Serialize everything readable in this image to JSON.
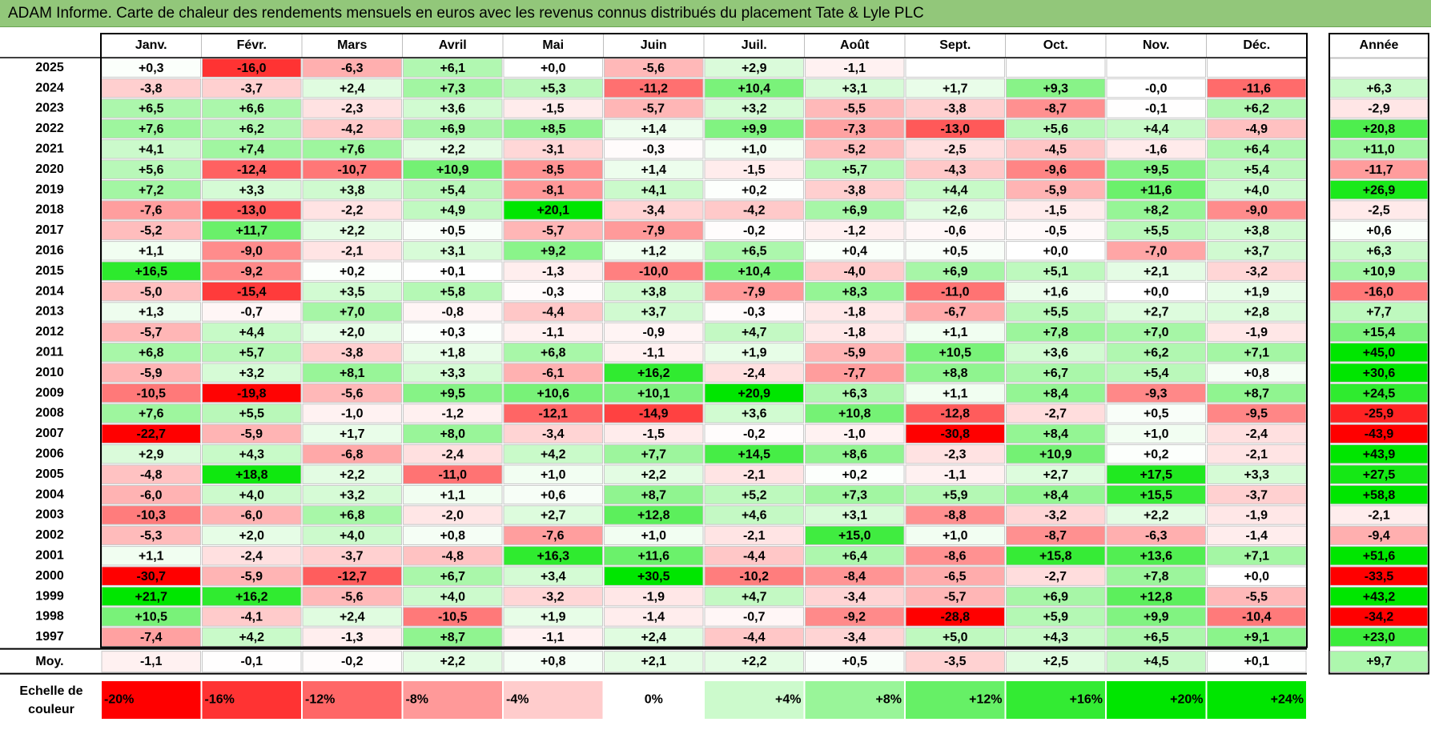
{
  "title": "ADAM Informe. Carte de chaleur des rendements mensuels en euros avec les revenus connus distribués du placement Tate & Lyle PLC",
  "chart_data": {
    "type": "heatmap",
    "months": [
      "Janv.",
      "Févr.",
      "Mars",
      "Avril",
      "Mai",
      "Juin",
      "Juil.",
      "Août",
      "Sept.",
      "Oct.",
      "Nov.",
      "Déc."
    ],
    "year_header": "Année",
    "rows": [
      {
        "year": "2025",
        "values": [
          "+0,3",
          "-16,0",
          "-6,3",
          "+6,1",
          "+0,0",
          "-5,6",
          "+2,9",
          "-1,1",
          null,
          null,
          null,
          null
        ],
        "annual": null
      },
      {
        "year": "2024",
        "values": [
          "-3,8",
          "-3,7",
          "+2,4",
          "+7,3",
          "+5,3",
          "-11,2",
          "+10,4",
          "+3,1",
          "+1,7",
          "+9,3",
          "-0,0",
          "-11,6"
        ],
        "annual": "+6,3"
      },
      {
        "year": "2023",
        "values": [
          "+6,5",
          "+6,6",
          "-2,3",
          "+3,6",
          "-1,5",
          "-5,7",
          "+3,2",
          "-5,5",
          "-3,8",
          "-8,7",
          "-0,1",
          "+6,2"
        ],
        "annual": "-2,9"
      },
      {
        "year": "2022",
        "values": [
          "+7,6",
          "+6,2",
          "-4,2",
          "+6,9",
          "+8,5",
          "+1,4",
          "+9,9",
          "-7,3",
          "-13,0",
          "+5,6",
          "+4,4",
          "-4,9"
        ],
        "annual": "+20,8"
      },
      {
        "year": "2021",
        "values": [
          "+4,1",
          "+7,4",
          "+7,6",
          "+2,2",
          "-3,1",
          "-0,3",
          "+1,0",
          "-5,2",
          "-2,5",
          "-4,5",
          "-1,6",
          "+6,4"
        ],
        "annual": "+11,0"
      },
      {
        "year": "2020",
        "values": [
          "+5,6",
          "-12,4",
          "-10,7",
          "+10,9",
          "-8,5",
          "+1,4",
          "-1,5",
          "+5,7",
          "-4,3",
          "-9,6",
          "+9,5",
          "+5,4"
        ],
        "annual": "-11,7"
      },
      {
        "year": "2019",
        "values": [
          "+7,2",
          "+3,3",
          "+3,8",
          "+5,4",
          "-8,1",
          "+4,1",
          "+0,2",
          "-3,8",
          "+4,4",
          "-5,9",
          "+11,6",
          "+4,0"
        ],
        "annual": "+26,9"
      },
      {
        "year": "2018",
        "values": [
          "-7,6",
          "-13,0",
          "-2,2",
          "+4,9",
          "+20,1",
          "-3,4",
          "-4,2",
          "+6,9",
          "+2,6",
          "-1,5",
          "+8,2",
          "-9,0"
        ],
        "annual": "-2,5"
      },
      {
        "year": "2017",
        "values": [
          "-5,2",
          "+11,7",
          "+2,2",
          "+0,5",
          "-5,7",
          "-7,9",
          "-0,2",
          "-1,2",
          "-0,6",
          "-0,5",
          "+5,5",
          "+3,8"
        ],
        "annual": "+0,6"
      },
      {
        "year": "2016",
        "values": [
          "+1,1",
          "-9,0",
          "-2,1",
          "+3,1",
          "+9,2",
          "+1,2",
          "+6,5",
          "+0,4",
          "+0,5",
          "+0,0",
          "-7,0",
          "+3,7"
        ],
        "annual": "+6,3"
      },
      {
        "year": "2015",
        "values": [
          "+16,5",
          "-9,2",
          "+0,2",
          "+0,1",
          "-1,3",
          "-10,0",
          "+10,4",
          "-4,0",
          "+6,9",
          "+5,1",
          "+2,1",
          "-3,2"
        ],
        "annual": "+10,9"
      },
      {
        "year": "2014",
        "values": [
          "-5,0",
          "-15,4",
          "+3,5",
          "+5,8",
          "-0,3",
          "+3,8",
          "-7,9",
          "+8,3",
          "-11,0",
          "+1,6",
          "+0,0",
          "+1,9"
        ],
        "annual": "-16,0"
      },
      {
        "year": "2013",
        "values": [
          "+1,3",
          "-0,7",
          "+7,0",
          "-0,8",
          "-4,4",
          "+3,7",
          "-0,3",
          "-1,8",
          "-6,7",
          "+5,5",
          "+2,7",
          "+2,8"
        ],
        "annual": "+7,7"
      },
      {
        "year": "2012",
        "values": [
          "-5,7",
          "+4,4",
          "+2,0",
          "+0,3",
          "-1,1",
          "-0,9",
          "+4,7",
          "-1,8",
          "+1,1",
          "+7,8",
          "+7,0",
          "-1,9"
        ],
        "annual": "+15,4"
      },
      {
        "year": "2011",
        "values": [
          "+6,8",
          "+5,7",
          "-3,8",
          "+1,8",
          "+6,8",
          "-1,1",
          "+1,9",
          "-5,9",
          "+10,5",
          "+3,6",
          "+6,2",
          "+7,1"
        ],
        "annual": "+45,0"
      },
      {
        "year": "2010",
        "values": [
          "-5,9",
          "+3,2",
          "+8,1",
          "+3,3",
          "-6,1",
          "+16,2",
          "-2,4",
          "-7,7",
          "+8,8",
          "+6,7",
          "+5,4",
          "+0,8"
        ],
        "annual": "+30,6"
      },
      {
        "year": "2009",
        "values": [
          "-10,5",
          "-19,8",
          "-5,6",
          "+9,5",
          "+10,6",
          "+10,1",
          "+20,9",
          "+6,3",
          "+1,1",
          "+8,4",
          "-9,3",
          "+8,7"
        ],
        "annual": "+24,5"
      },
      {
        "year": "2008",
        "values": [
          "+7,6",
          "+5,5",
          "-1,0",
          "-1,2",
          "-12,1",
          "-14,9",
          "+3,6",
          "+10,8",
          "-12,8",
          "-2,7",
          "+0,5",
          "-9,5"
        ],
        "annual": "-25,9"
      },
      {
        "year": "2007",
        "values": [
          "-22,7",
          "-5,9",
          "+1,7",
          "+8,0",
          "-3,4",
          "-1,5",
          "-0,2",
          "-1,0",
          "-30,8",
          "+8,4",
          "+1,0",
          "-2,4"
        ],
        "annual": "-43,9"
      },
      {
        "year": "2006",
        "values": [
          "+2,9",
          "+4,3",
          "-6,8",
          "-2,4",
          "+4,2",
          "+7,7",
          "+14,5",
          "+8,6",
          "-2,3",
          "+10,9",
          "+0,2",
          "-2,1"
        ],
        "annual": "+43,9"
      },
      {
        "year": "2005",
        "values": [
          "-4,8",
          "+18,8",
          "+2,2",
          "-11,0",
          "+1,0",
          "+2,2",
          "-2,1",
          "+0,2",
          "-1,1",
          "+2,7",
          "+17,5",
          "+3,3"
        ],
        "annual": "+27,5"
      },
      {
        "year": "2004",
        "values": [
          "-6,0",
          "+4,0",
          "+3,2",
          "+1,1",
          "+0,6",
          "+8,7",
          "+5,2",
          "+7,3",
          "+5,9",
          "+8,4",
          "+15,5",
          "-3,7"
        ],
        "annual": "+58,8"
      },
      {
        "year": "2003",
        "values": [
          "-10,3",
          "-6,0",
          "+6,8",
          "-2,0",
          "+2,7",
          "+12,8",
          "+4,6",
          "+3,1",
          "-8,8",
          "-3,2",
          "+2,2",
          "-1,9"
        ],
        "annual": "-2,1"
      },
      {
        "year": "2002",
        "values": [
          "-5,3",
          "+2,0",
          "+4,0",
          "+0,8",
          "-7,6",
          "+1,0",
          "-2,1",
          "+15,0",
          "+1,0",
          "-8,7",
          "-6,3",
          "-1,4"
        ],
        "annual": "-9,4"
      },
      {
        "year": "2001",
        "values": [
          "+1,1",
          "-2,4",
          "-3,7",
          "-4,8",
          "+16,3",
          "+11,6",
          "-4,4",
          "+6,4",
          "-8,6",
          "+15,8",
          "+13,6",
          "+7,1"
        ],
        "annual": "+51,6"
      },
      {
        "year": "2000",
        "values": [
          "-30,7",
          "-5,9",
          "-12,7",
          "+6,7",
          "+3,4",
          "+30,5",
          "-10,2",
          "-8,4",
          "-6,5",
          "-2,7",
          "+7,8",
          "+0,0"
        ],
        "annual": "-33,5"
      },
      {
        "year": "1999",
        "values": [
          "+21,7",
          "+16,2",
          "-5,6",
          "+4,0",
          "-3,2",
          "-1,9",
          "+4,7",
          "-3,4",
          "-5,7",
          "+6,9",
          "+12,8",
          "-5,5"
        ],
        "annual": "+43,2"
      },
      {
        "year": "1998",
        "values": [
          "+10,5",
          "-4,1",
          "+2,4",
          "-10,5",
          "+1,9",
          "-1,4",
          "-0,7",
          "-9,2",
          "-28,8",
          "+5,9",
          "+9,9",
          "-10,4"
        ],
        "annual": "-34,2"
      },
      {
        "year": "1997",
        "values": [
          "-7,4",
          "+4,2",
          "-1,3",
          "+8,7",
          "-1,1",
          "+2,4",
          "-4,4",
          "-3,4",
          "+5,0",
          "+4,3",
          "+6,5",
          "+9,1"
        ],
        "annual": "+23,0"
      }
    ],
    "average_row": {
      "label": "Moy.",
      "values": [
        "-1,1",
        "-0,1",
        "-0,2",
        "+2,2",
        "+0,8",
        "+2,1",
        "+2,2",
        "+0,5",
        "-3,5",
        "+2,5",
        "+4,5",
        "+0,1"
      ],
      "annual": "+9,7"
    },
    "scale": {
      "label_line1": "Echelle de",
      "label_line2": "couleur",
      "stops": [
        {
          "label": "-20%",
          "value": -20
        },
        {
          "label": "-16%",
          "value": -16
        },
        {
          "label": "-12%",
          "value": -12
        },
        {
          "label": "-8%",
          "value": -8
        },
        {
          "label": "-4%",
          "value": -4
        },
        {
          "label": "0%",
          "value": 0
        },
        {
          "label": "+4%",
          "value": 4
        },
        {
          "label": "+8%",
          "value": 8
        },
        {
          "label": "+12%",
          "value": 12
        },
        {
          "label": "+16%",
          "value": 16
        },
        {
          "label": "+20%",
          "value": 20
        },
        {
          "label": "+24%",
          "value": 24
        }
      ]
    },
    "colors": {
      "negative": "#ff0000",
      "neutral": "#ffffff",
      "positive": "#00e600",
      "header_bar": "#92c77a"
    }
  }
}
